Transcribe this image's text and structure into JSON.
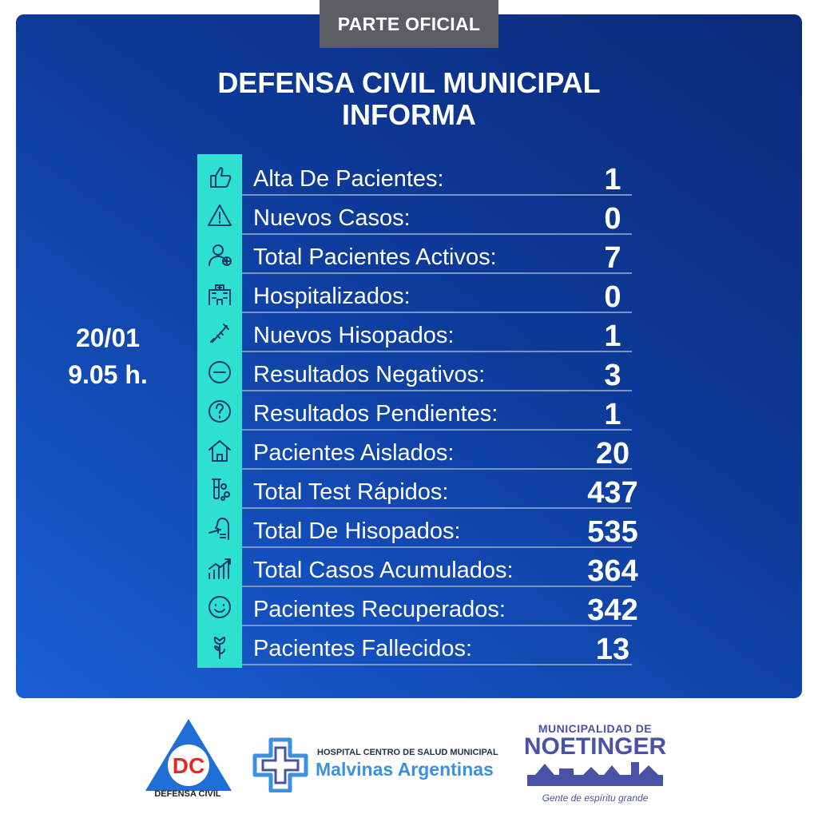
{
  "tag": "PARTE OFICIAL",
  "title": {
    "line1": "DEFENSA CIVIL MUNICIPAL",
    "line2": "INFORMA"
  },
  "date": {
    "day": "20/01",
    "time": "9.05 h."
  },
  "stats": [
    {
      "label": "Alta De Pacientes:",
      "value": "1",
      "icon": "thumbs-up-icon"
    },
    {
      "label": "Nuevos Casos:",
      "value": "0",
      "icon": "warning-icon"
    },
    {
      "label": "Total Pacientes Activos:",
      "value": "7",
      "icon": "patient-icon"
    },
    {
      "label": "Hospitalizados:",
      "value": "0",
      "icon": "hospital-icon"
    },
    {
      "label": "Nuevos Hisopados:",
      "value": "1",
      "icon": "swab-icon"
    },
    {
      "label": "Resultados Negativos:",
      "value": "3",
      "icon": "minus-circle-icon"
    },
    {
      "label": "Resultados Pendientes:",
      "value": "1",
      "icon": "question-circle-icon"
    },
    {
      "label": "Pacientes Aislados:",
      "value": "20",
      "icon": "house-icon"
    },
    {
      "label": "Total Test Rápidos:",
      "value": "437",
      "icon": "test-tube-icon"
    },
    {
      "label": "Total De Hisopados:",
      "value": "535",
      "icon": "nasal-swab-icon"
    },
    {
      "label": "Total Casos Acumulados:",
      "value": "364",
      "icon": "chart-up-icon"
    },
    {
      "label": "Pacientes Recuperados:",
      "value": "342",
      "icon": "smile-icon"
    },
    {
      "label": "Pacientes Fallecidos:",
      "value": "13",
      "icon": "rose-icon"
    }
  ],
  "footer": {
    "dc": {
      "letters": "DC",
      "caption": "DEFENSA CIVIL"
    },
    "hospital": {
      "line1": "HOSPITAL CENTRO DE SALUD MUNICIPAL",
      "line2": "Malvinas Argentinas"
    },
    "municipality": {
      "line1": "MUNICIPALIDAD DE",
      "line2": "NOETINGER",
      "slogan": "Gente de espíritu grande"
    }
  },
  "colors": {
    "panel": "#0d3c9c",
    "accent": "#2de0d0",
    "tag": "#5b5d62",
    "dc_red": "#e02a2a",
    "dc_blue": "#1f6fd6"
  }
}
